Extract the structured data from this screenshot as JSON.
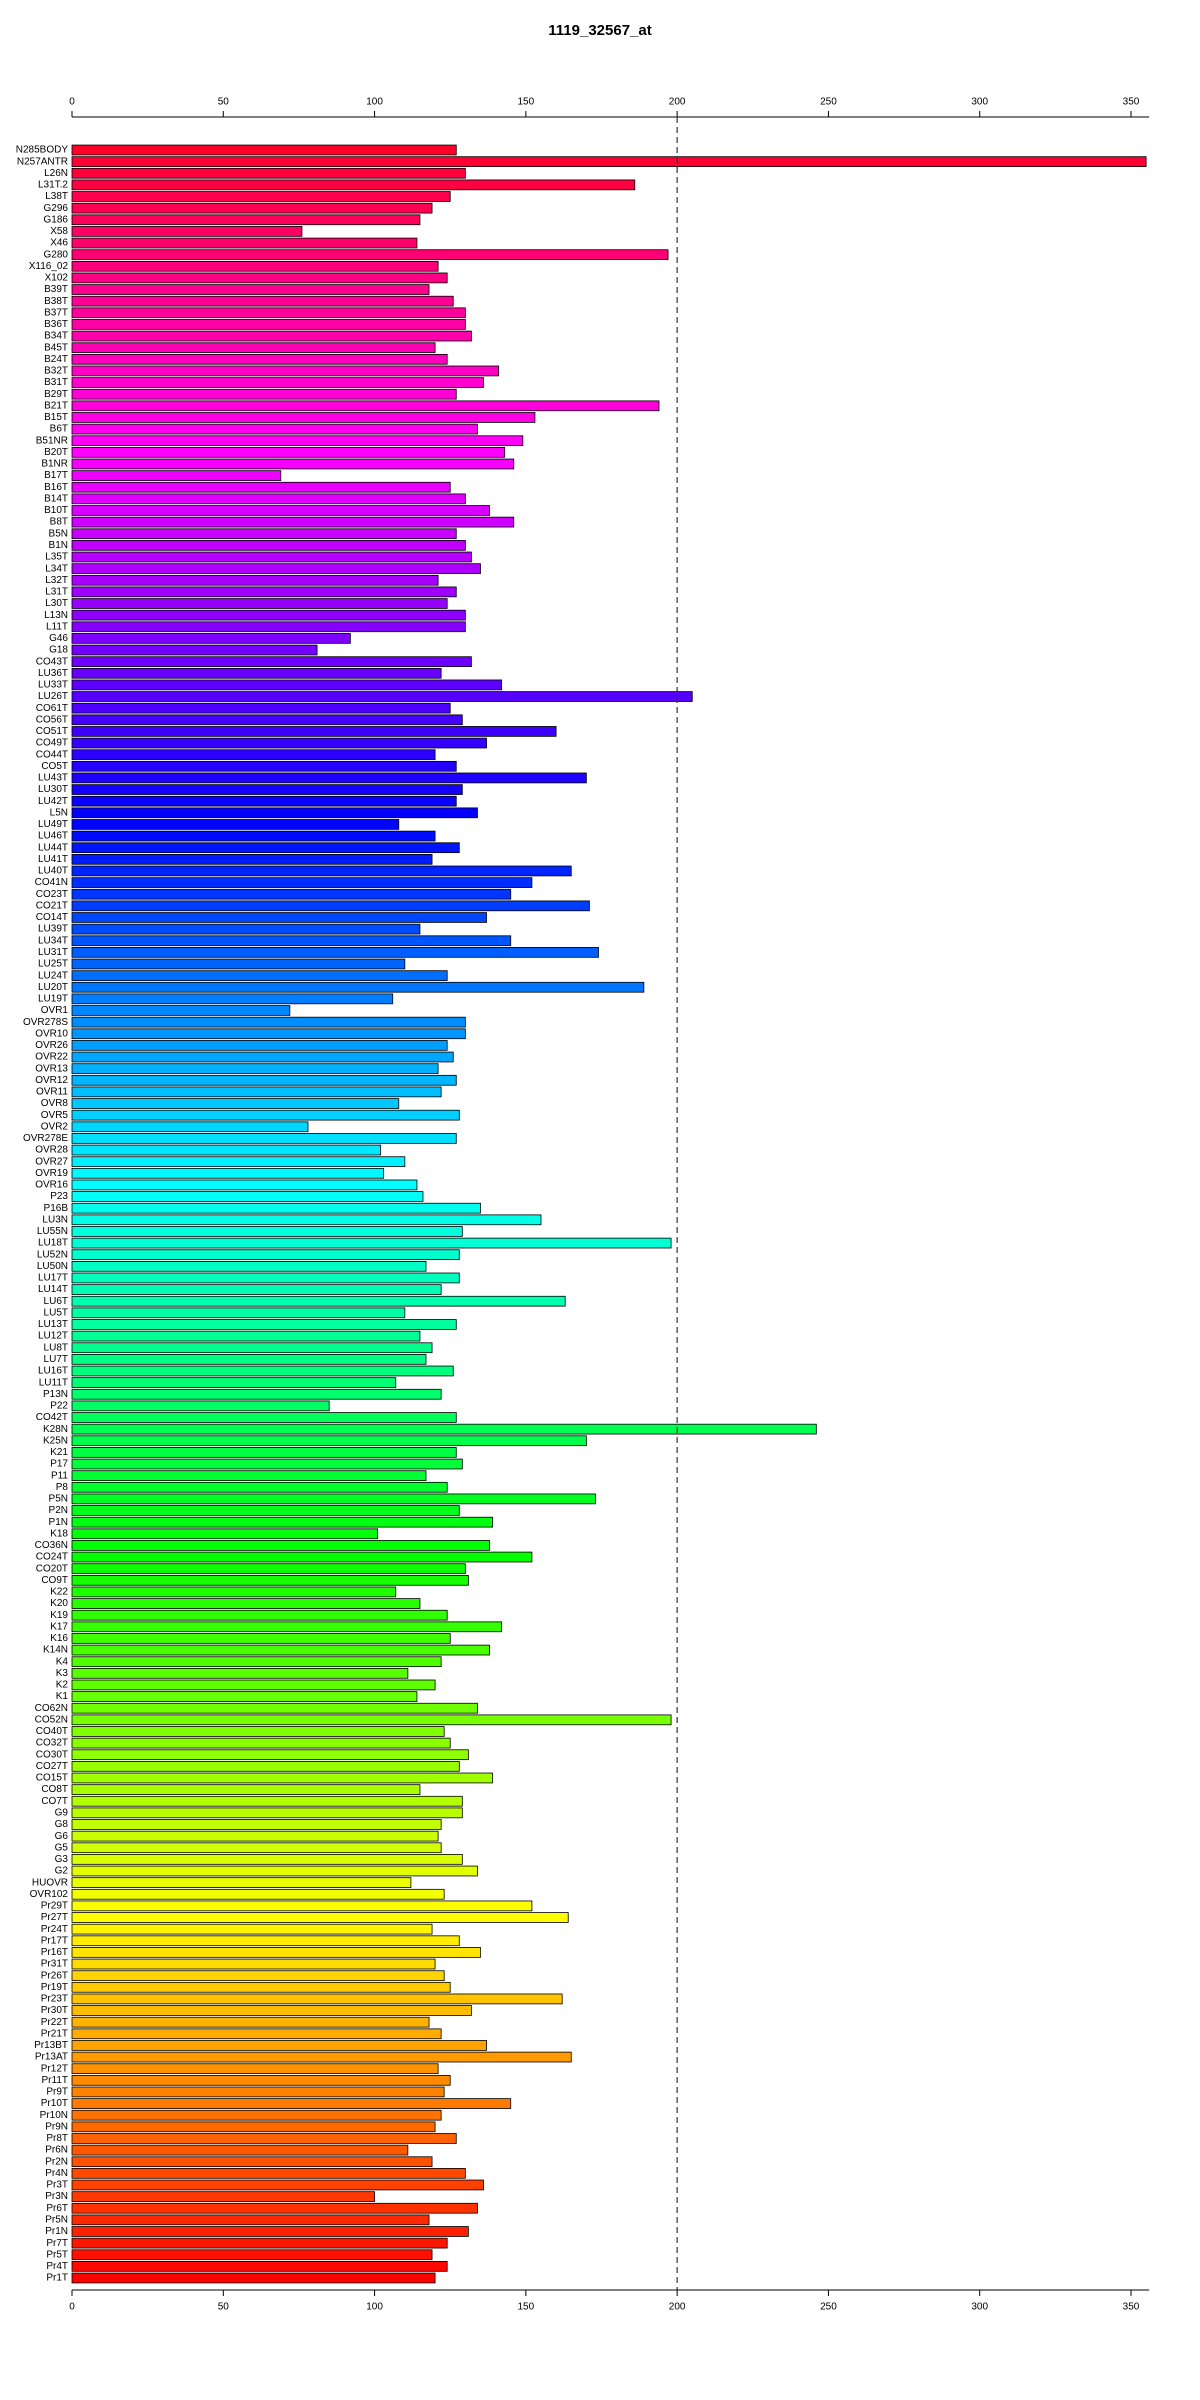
{
  "chart_data": {
    "type": "barh",
    "title": "1119_32567_at",
    "categories": [
      "N285BODY",
      "N257ANTR",
      "L26N",
      "L31T.2",
      "L38T",
      "G296",
      "G186",
      "X58",
      "X46",
      "G280",
      "X116_02",
      "X102",
      "B39T",
      "B38T",
      "B37T",
      "B36T",
      "B34T",
      "B45T",
      "B24T",
      "B32T",
      "B31T",
      "B29T",
      "B21T",
      "B15T",
      "B6T",
      "B51NR",
      "B20T",
      "B1NR",
      "B17T",
      "B16T",
      "B14T",
      "B10T",
      "B8T",
      "B5N",
      "B1N",
      "L35T",
      "L34T",
      "L32T",
      "L31T",
      "L30T",
      "L13N",
      "L11T",
      "G46",
      "G18",
      "CO43T",
      "LU36T",
      "LU33T",
      "LU26T",
      "CO61T",
      "CO56T",
      "CO51T",
      "CO49T",
      "CO44T",
      "CO5T",
      "LU43T",
      "LU30T",
      "LU42T",
      "L5N",
      "LU49T",
      "LU46T",
      "LU44T",
      "LU41T",
      "LU40T",
      "CO41N",
      "CO23T",
      "CO21T",
      "CO14T",
      "LU39T",
      "LU34T",
      "LU31T",
      "LU25T",
      "LU24T",
      "LU20T",
      "LU19T",
      "OVR1",
      "OVR278S",
      "OVR10",
      "OVR26",
      "OVR22",
      "OVR13",
      "OVR12",
      "OVR11",
      "OVR8",
      "OVR5",
      "OVR2",
      "OVR278E",
      "OVR28",
      "OVR27",
      "OVR19",
      "OVR16",
      "P23",
      "P16B",
      "LU3N",
      "LU55N",
      "LU18T",
      "LU52N",
      "LU50N",
      "LU17T",
      "LU14T",
      "LU6T",
      "LU5T",
      "LU13T",
      "LU12T",
      "LU8T",
      "LU7T",
      "LU16T",
      "LU11T",
      "P13N",
      "P22",
      "CO42T",
      "K28N",
      "K25N",
      "K21",
      "P17",
      "P11",
      "P8",
      "P5N",
      "P2N",
      "P1N",
      "K18",
      "CO36N",
      "CO24T",
      "CO20T",
      "CO9T",
      "K22",
      "K20",
      "K19",
      "K17",
      "K16",
      "K14N",
      "K4",
      "K3",
      "K2",
      "K1",
      "CO62N",
      "CO52N",
      "CO40T",
      "CO32T",
      "CO30T",
      "CO27T",
      "CO15T",
      "CO8T",
      "CO7T",
      "G9",
      "G8",
      "G6",
      "G5",
      "G3",
      "G2",
      "HUOVR",
      "OVR102",
      "Pr29T",
      "Pr27T",
      "Pr24T",
      "Pr17T",
      "Pr16T",
      "Pr31T",
      "Pr26T",
      "Pr19T",
      "Pr23T",
      "Pr30T",
      "Pr22T",
      "Pr21T",
      "Pr13BT",
      "Pr13AT",
      "Pr12T",
      "Pr11T",
      "Pr9T",
      "Pr10T",
      "Pr10N",
      "Pr9N",
      "Pr8T",
      "Pr6N",
      "Pr2N",
      "Pr4N",
      "Pr3T",
      "Pr3N",
      "Pr6T",
      "Pr5N",
      "Pr1N",
      "Pr7T",
      "Pr5T",
      "Pr4T",
      "Pr1T"
    ],
    "values": [
      127,
      355,
      130,
      186,
      125,
      119,
      115,
      76,
      114,
      197,
      121,
      124,
      118,
      126,
      130,
      130,
      132,
      120,
      124,
      141,
      136,
      127,
      194,
      153,
      134,
      149,
      143,
      146,
      69,
      125,
      130,
      138,
      146,
      127,
      130,
      132,
      135,
      121,
      127,
      124,
      130,
      130,
      92,
      81,
      132,
      122,
      142,
      205,
      125,
      129,
      160,
      137,
      120,
      127,
      170,
      129,
      127,
      134,
      108,
      120,
      128,
      119,
      165,
      152,
      145,
      171,
      137,
      115,
      145,
      174,
      110,
      124,
      189,
      106,
      72,
      130,
      130,
      124,
      126,
      121,
      127,
      122,
      108,
      128,
      78,
      127,
      102,
      110,
      103,
      114,
      116,
      135,
      155,
      129,
      198,
      128,
      117,
      128,
      122,
      163,
      110,
      127,
      115,
      119,
      117,
      126,
      107,
      122,
      85,
      127,
      246,
      170,
      127,
      129,
      117,
      124,
      173,
      128,
      139,
      101,
      138,
      152,
      130,
      131,
      107,
      115,
      124,
      142,
      125,
      138,
      122,
      111,
      120,
      114,
      134,
      198,
      123,
      125,
      131,
      128,
      139,
      115,
      129,
      129,
      122,
      121,
      122,
      129,
      134,
      112,
      123,
      152,
      164,
      119,
      128,
      135,
      120,
      123,
      125,
      162,
      132,
      118,
      122,
      137,
      165,
      121,
      125,
      123,
      145,
      122,
      120,
      127,
      111,
      119,
      130,
      136,
      100,
      134,
      118,
      131,
      124,
      119,
      124,
      120
    ],
    "palette": "rainbow",
    "xlim": [
      0,
      356
    ],
    "xticks": [
      0,
      50,
      100,
      150,
      200,
      250,
      300,
      350
    ],
    "reference_line": 200
  }
}
